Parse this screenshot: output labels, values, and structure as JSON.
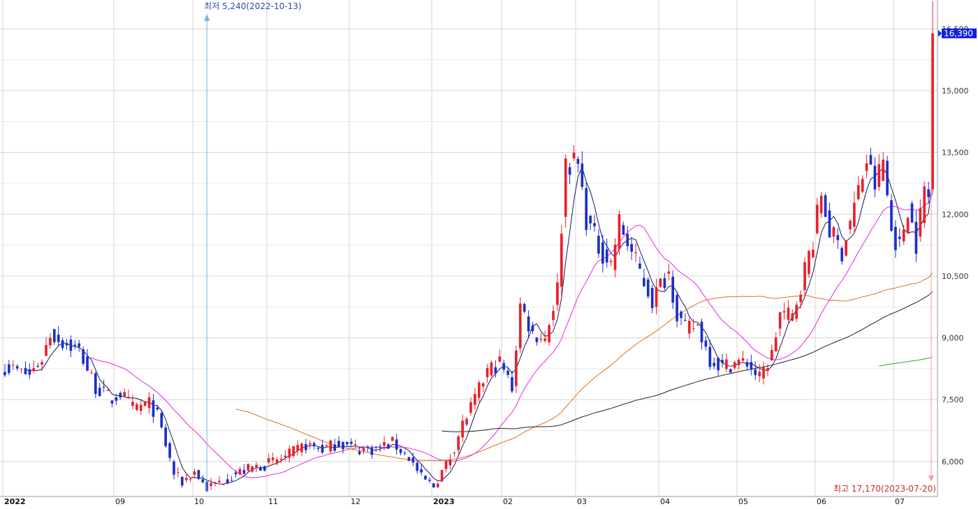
{
  "chart_data": {
    "type": "candlestick",
    "y_ticks": [
      6000,
      7500,
      9000,
      10500,
      12000,
      13500,
      15000,
      16500
    ],
    "y_tick_labels": [
      "6,000",
      "7,500",
      "9,000",
      "10,500",
      "12,000",
      "13,500",
      "15,000",
      "16,500"
    ],
    "ylim": [
      5150,
      17200
    ],
    "x_tick_labels": [
      "2022",
      "09",
      "10",
      "11",
      "12",
      "2023",
      "02",
      "03",
      "04",
      "05",
      "06",
      "07"
    ],
    "x_tick_index": [
      0,
      27,
      46,
      64,
      84,
      104,
      121,
      139,
      159,
      178,
      197,
      216
    ],
    "n_days": 226,
    "last_price": 16390,
    "last_price_label": "16,390",
    "annotations": {
      "low": "최저 5,240(2022-10-13)",
      "high": "최고 17,170(2023-07-20)"
    },
    "colors": {
      "up": "#e8202a",
      "down": "#1b2fc9",
      "ma5": "#14185c",
      "ma20": "#e32ad8",
      "ma60": "#e0701a",
      "ma120": "#222222",
      "ma240": "#31a42c",
      "grid": "#d6d6d6",
      "low_marker": "#74b6e9",
      "high_marker": "#f09aa0",
      "last_price_box": "#0f20e0"
    },
    "anchors": [
      [
        0,
        8300
      ],
      [
        6,
        8100
      ],
      [
        9,
        8500
      ],
      [
        11,
        9100
      ],
      [
        14,
        8900
      ],
      [
        18,
        8700
      ],
      [
        22,
        7800
      ],
      [
        26,
        7500
      ],
      [
        28,
        7650
      ],
      [
        31,
        7300
      ],
      [
        35,
        7400
      ],
      [
        37,
        7100
      ],
      [
        41,
        5700
      ],
      [
        43,
        5500
      ],
      [
        46,
        5750
      ],
      [
        49,
        5350
      ],
      [
        52,
        5500
      ],
      [
        56,
        5700
      ],
      [
        60,
        5850
      ],
      [
        64,
        5950
      ],
      [
        68,
        6100
      ],
      [
        73,
        6400
      ],
      [
        77,
        6300
      ],
      [
        81,
        6450
      ],
      [
        86,
        6300
      ],
      [
        90,
        6300
      ],
      [
        94,
        6450
      ],
      [
        98,
        6100
      ],
      [
        101,
        5600
      ],
      [
        104,
        5400
      ],
      [
        108,
        6100
      ],
      [
        111,
        6900
      ],
      [
        114,
        7500
      ],
      [
        117,
        8200
      ],
      [
        120,
        8400
      ],
      [
        123,
        7800
      ],
      [
        125,
        9800
      ],
      [
        128,
        9100
      ],
      [
        131,
        9000
      ],
      [
        134,
        10200
      ],
      [
        136,
        13300
      ],
      [
        139,
        13200
      ],
      [
        141,
        11900
      ],
      [
        144,
        11200
      ],
      [
        147,
        10800
      ],
      [
        149,
        11800
      ],
      [
        151,
        11300
      ],
      [
        154,
        10600
      ],
      [
        157,
        9900
      ],
      [
        159,
        10300
      ],
      [
        161,
        10600
      ],
      [
        163,
        9600
      ],
      [
        165,
        9200
      ],
      [
        168,
        9300
      ],
      [
        171,
        8500
      ],
      [
        174,
        8300
      ],
      [
        177,
        8400
      ],
      [
        180,
        8400
      ],
      [
        183,
        8000
      ],
      [
        186,
        8600
      ],
      [
        188,
        9600
      ],
      [
        191,
        9500
      ],
      [
        193,
        10300
      ],
      [
        196,
        11400
      ],
      [
        198,
        12500
      ],
      [
        200,
        11600
      ],
      [
        203,
        11100
      ],
      [
        206,
        12200
      ],
      [
        209,
        13300
      ],
      [
        211,
        12700
      ],
      [
        213,
        13300
      ],
      [
        215,
        11600
      ],
      [
        217,
        11200
      ],
      [
        219,
        12200
      ],
      [
        221,
        11300
      ],
      [
        223,
        12600
      ],
      [
        224,
        12400
      ],
      [
        225,
        16390
      ]
    ],
    "moving_averages": [
      {
        "window": 5,
        "start": 5
      },
      {
        "window": 20,
        "start": 20
      },
      {
        "window": 60,
        "start": 56
      },
      {
        "window": 120,
        "start": 106
      },
      {
        "window": 240,
        "start": 212
      }
    ]
  }
}
